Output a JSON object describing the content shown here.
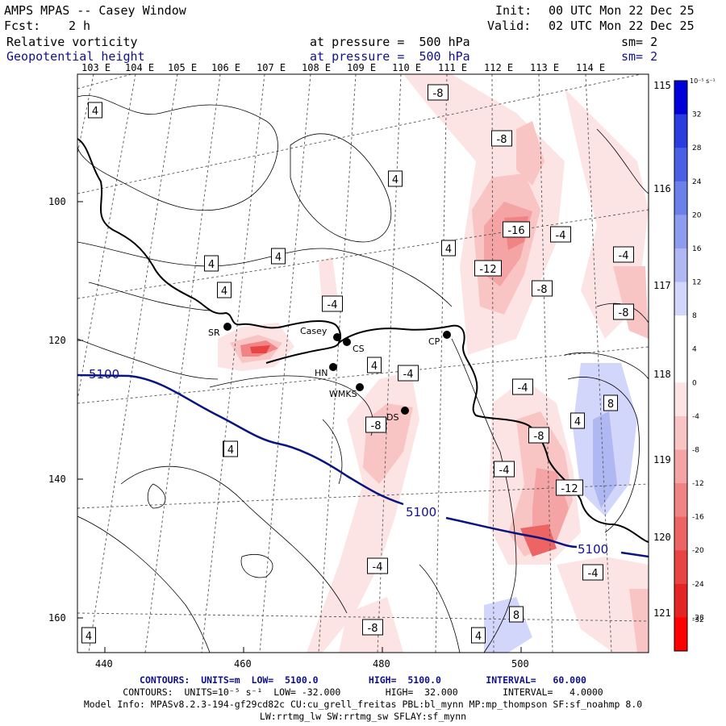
{
  "header": {
    "model": "AMPS MPAS -- Casey Window",
    "init_label": "Init:",
    "init_value": "00 UTC Mon 22 Dec 25",
    "fcst_label": "Fcst:",
    "fcst_value": "2 h",
    "valid_label": "Valid:",
    "valid_value": "02 UTC Mon 22 Dec 25"
  },
  "fields": [
    {
      "name": "Relative vorticity",
      "level": "at pressure =  500 hPa",
      "smooth": "sm= 2"
    },
    {
      "name": "Geopotential height",
      "level": "at pressure =  500 hPa",
      "smooth": "sm= 2"
    }
  ],
  "lon_top": [
    "103 E",
    "104 E",
    "105 E",
    "106 E",
    "107 E",
    "108 E",
    "109 E",
    "110 E",
    "111 E",
    "112 E",
    "113 E",
    "114 E"
  ],
  "lon_right": [
    "115 E",
    "116 E",
    "117 E",
    "118 E",
    "119 E",
    "120 E",
    "121 E"
  ],
  "x_ticks": [
    "440",
    "460",
    "480",
    "500"
  ],
  "y_ticks": [
    "100",
    "120",
    "140",
    "160"
  ],
  "stations": [
    {
      "name": "SR"
    },
    {
      "name": "Casey"
    },
    {
      "name": "CS"
    },
    {
      "name": "HN"
    },
    {
      "name": "WMKS"
    },
    {
      "name": "CP"
    },
    {
      "name": "DS"
    }
  ],
  "vort_labels": [
    "4",
    "4",
    "4",
    "4",
    "4",
    "4",
    "-8",
    "-8",
    "-16",
    "-4",
    "-4",
    "-12",
    "-8",
    "-8",
    "-4",
    "4",
    "-4",
    "-4",
    "-8",
    "4",
    "-8",
    "-4",
    "-12",
    "8",
    "4",
    "-4",
    "-4",
    "8",
    "4",
    "-8",
    "4",
    "4"
  ],
  "height_labels": [
    "5100",
    "5100",
    "5100"
  ],
  "colorbar": {
    "units": "10⁻⁵ s⁻¹",
    "levels": [
      "32",
      "28",
      "24",
      "20",
      "16",
      "12",
      "8",
      "4",
      "0",
      "-4",
      "-8",
      "-12",
      "-16",
      "-20",
      "-24",
      "-28",
      "-32"
    ],
    "colors": [
      "#0000d8",
      "#2a3ee0",
      "#4a60e4",
      "#6c80ea",
      "#8e9cf0",
      "#b0b8f4",
      "#d2d6fa",
      "#ffffff",
      "#ffffff",
      "#fde4e4",
      "#f8c4c4",
      "#f4a4a4",
      "#f08484",
      "#ec6464",
      "#e84444",
      "#e42424",
      "#ff0000"
    ]
  },
  "footer": {
    "line1": "CONTOURS:  UNITS=m  LOW=  5100.0         HIGH=  5100.0        INTERVAL=   60.000",
    "line2": "CONTOURS:  UNITS=10⁻⁵ s⁻¹  LOW= -32.000        HIGH=  32.000        INTERVAL=   4.0000",
    "line3": "Model Info: MPASv8.2.3-194-gf29cd82c CU:cu_grell_freitas PBL:bl_mynn MP:mp_thompson SF:sf_noahmp 8.0",
    "line4": "LW:rrtmg_lw SW:rrtmg_sw SFLAY:sf_mynn"
  },
  "colors": {
    "height_contour": "#0a147e",
    "title_blue": "#10108a"
  }
}
